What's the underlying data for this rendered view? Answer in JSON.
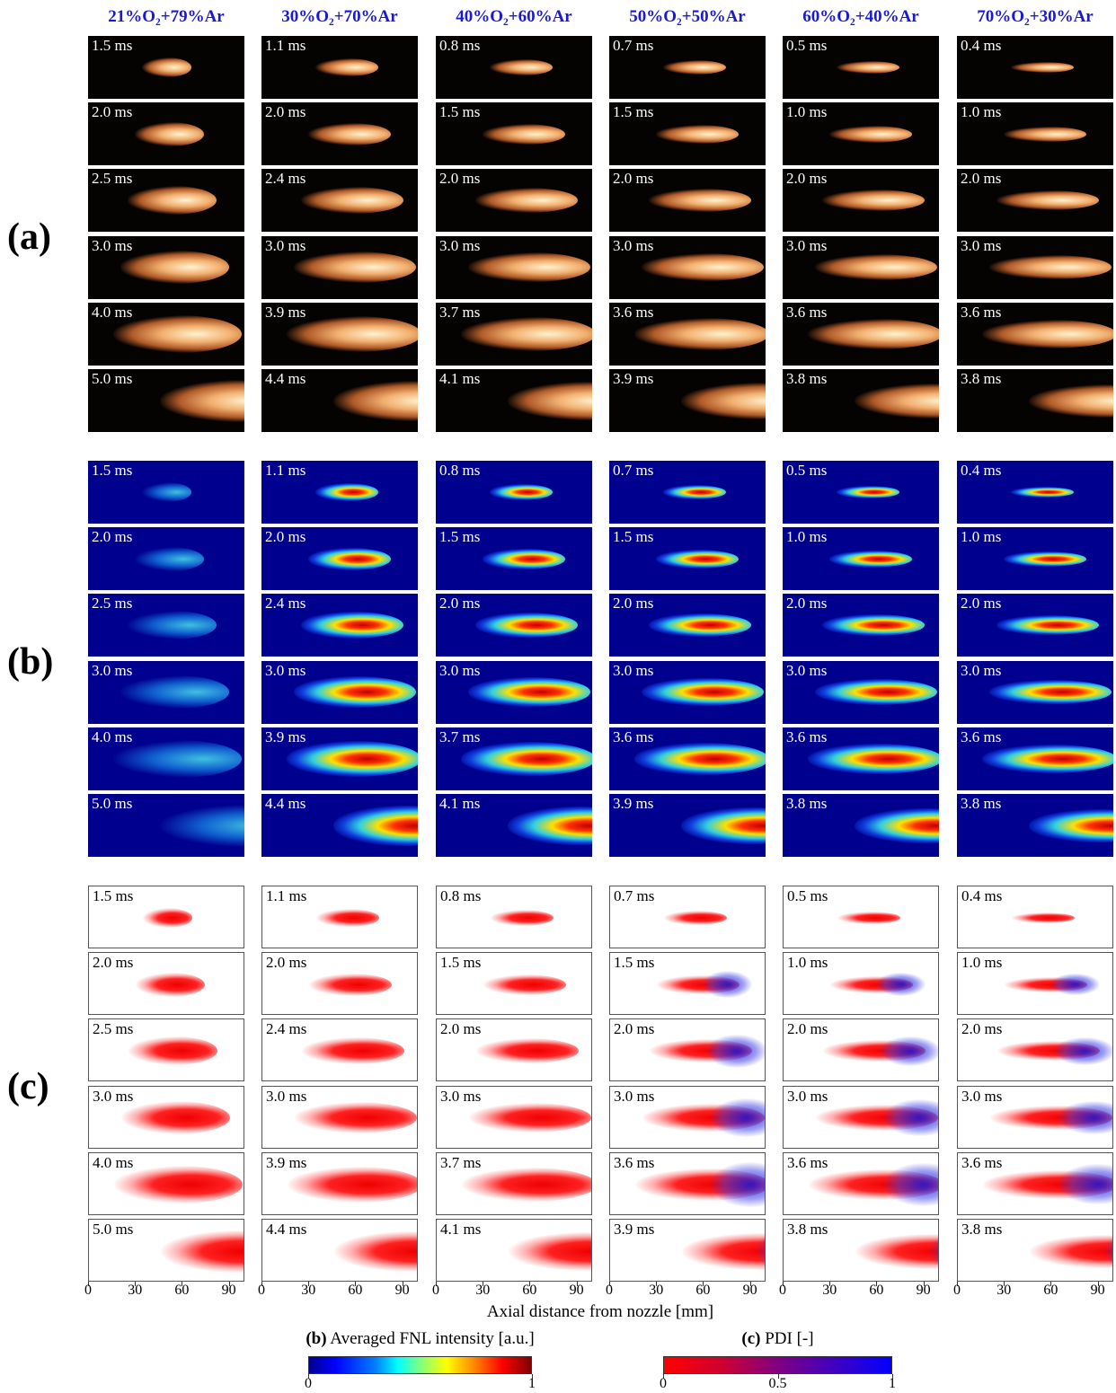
{
  "column_headers": [
    "21%O₂+79%Ar",
    "30%O₂+70%Ar",
    "40%O₂+60%Ar",
    "50%O₂+50%Ar",
    "60%O₂+40%Ar",
    "70%O₂+30%Ar"
  ],
  "panel_labels": [
    "(a)",
    "(b)",
    "(c)"
  ],
  "time_labels": [
    [
      "1.5 ms",
      "2.0 ms",
      "2.5 ms",
      "3.0 ms",
      "4.0 ms",
      "5.0 ms"
    ],
    [
      "1.1 ms",
      "2.0 ms",
      "2.4 ms",
      "3.0 ms",
      "3.9 ms",
      "4.4 ms"
    ],
    [
      "0.8 ms",
      "1.5 ms",
      "2.0 ms",
      "3.0 ms",
      "3.7 ms",
      "4.1 ms"
    ],
    [
      "0.7 ms",
      "1.5 ms",
      "2.0 ms",
      "3.0 ms",
      "3.6 ms",
      "3.9 ms"
    ],
    [
      "0.5 ms",
      "1.0 ms",
      "2.0 ms",
      "3.0 ms",
      "3.6 ms",
      "3.8 ms"
    ],
    [
      "0.4 ms",
      "1.0 ms",
      "2.0 ms",
      "3.0 ms",
      "3.6 ms",
      "3.8 ms"
    ]
  ],
  "x_axis": {
    "label": "Axial distance from nozzle [mm]",
    "ticks": [
      0,
      30,
      60,
      90
    ]
  },
  "colorbars": [
    {
      "tag": "(b)",
      "label": "Averaged FNL intensity [a.u.]",
      "ticks": [
        0,
        1
      ]
    },
    {
      "tag": "(c)",
      "label": "PDI [-]",
      "ticks": [
        0,
        0.5,
        1
      ]
    }
  ]
}
